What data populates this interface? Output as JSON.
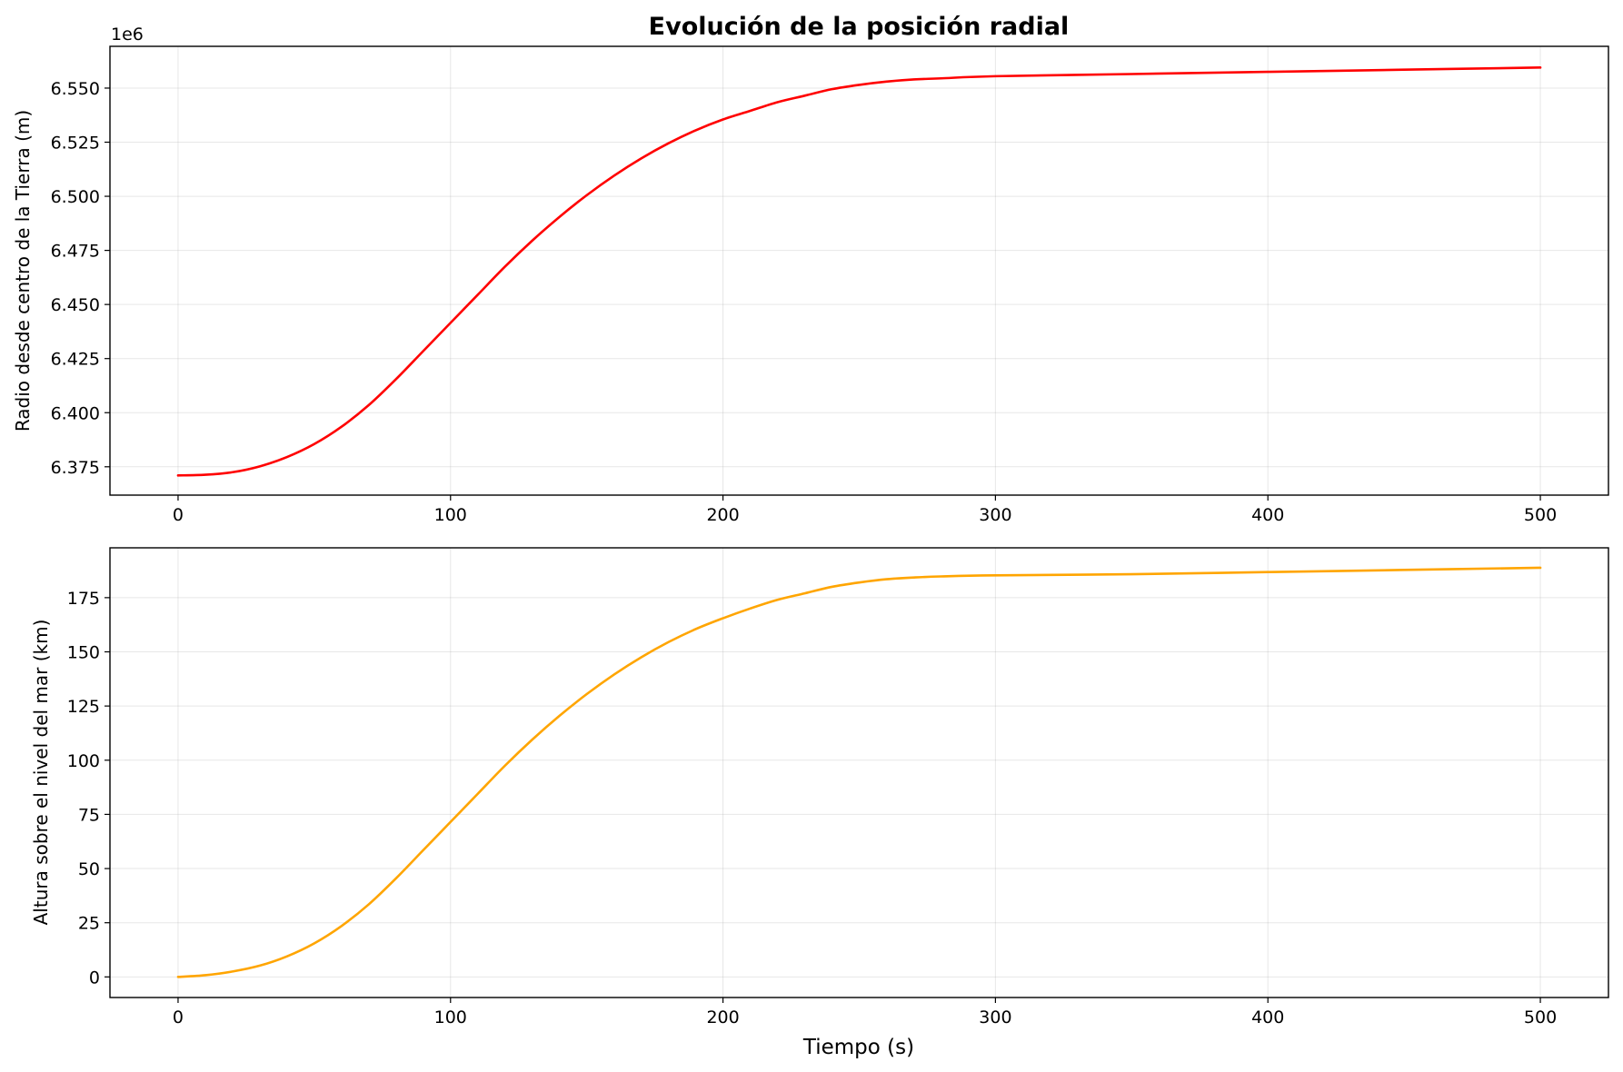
{
  "chart_data": [
    {
      "type": "line",
      "title": "Evolución de la posición radial",
      "xlabel": "",
      "ylabel": "Radio desde centro de la Tierra (m)",
      "y_offset_label": "1e6",
      "xlim": [
        -25,
        525
      ],
      "ylim": [
        6.3619,
        6.5693
      ],
      "x_ticks": [
        0,
        100,
        200,
        300,
        400,
        500
      ],
      "x_tick_labels": [
        "0",
        "100",
        "200",
        "300",
        "400",
        "500"
      ],
      "y_ticks": [
        6.375,
        6.4,
        6.425,
        6.45,
        6.475,
        6.5,
        6.525,
        6.55
      ],
      "y_tick_labels": [
        "6.375",
        "6.400",
        "6.425",
        "6.450",
        "6.475",
        "6.500",
        "6.525",
        "6.550"
      ],
      "grid": true,
      "series": [
        {
          "color": "#ff0000",
          "x": [
            0,
            10,
            20,
            30,
            40,
            50,
            60,
            70,
            80,
            90,
            100,
            110,
            120,
            130,
            140,
            150,
            160,
            170,
            180,
            190,
            200,
            210,
            220,
            230,
            240,
            250,
            260,
            270,
            280,
            300,
            350,
            400,
            450,
            500
          ],
          "y": [
            6.371,
            6.3713,
            6.3725,
            6.3752,
            6.3795,
            6.3855,
            6.3935,
            6.4035,
            6.4155,
            6.4285,
            6.4415,
            6.4545,
            6.4675,
            6.4795,
            6.4905,
            6.5005,
            6.5095,
            6.5175,
            6.5245,
            6.5305,
            6.5355,
            6.5395,
            6.5435,
            6.5465,
            6.5495,
            6.5515,
            6.553,
            6.554,
            6.5545,
            6.5555,
            6.5565,
            6.5575,
            6.5585,
            6.5595
          ]
        }
      ]
    },
    {
      "type": "line",
      "title": "",
      "xlabel": "Tiempo (s)",
      "ylabel": "Altura sobre el nivel del mar (km)",
      "xlim": [
        -25,
        525
      ],
      "ylim": [
        -9.5,
        198
      ],
      "x_ticks": [
        0,
        100,
        200,
        300,
        400,
        500
      ],
      "x_tick_labels": [
        "0",
        "100",
        "200",
        "300",
        "400",
        "500"
      ],
      "y_ticks": [
        0,
        25,
        50,
        75,
        100,
        125,
        150,
        175
      ],
      "y_tick_labels": [
        "0",
        "25",
        "50",
        "75",
        "100",
        "125",
        "150",
        "175"
      ],
      "grid": true,
      "series": [
        {
          "color": "#ffa500",
          "x": [
            0,
            10,
            20,
            30,
            40,
            50,
            60,
            70,
            80,
            90,
            100,
            110,
            120,
            130,
            140,
            150,
            160,
            170,
            180,
            190,
            200,
            210,
            220,
            230,
            240,
            250,
            260,
            270,
            280,
            300,
            350,
            400,
            450,
            500
          ],
          "y": [
            0,
            0.8,
            2.5,
            5.2,
            9.5,
            15.5,
            23.5,
            33.5,
            45.5,
            58.5,
            71.5,
            84.5,
            97.5,
            109.5,
            120.5,
            130.5,
            139.5,
            147.5,
            154.5,
            160.5,
            165.5,
            170.0,
            174.0,
            177.0,
            180.0,
            182.0,
            183.5,
            184.3,
            184.8,
            185.3,
            185.8,
            186.8,
            187.8,
            188.8
          ]
        }
      ]
    }
  ]
}
